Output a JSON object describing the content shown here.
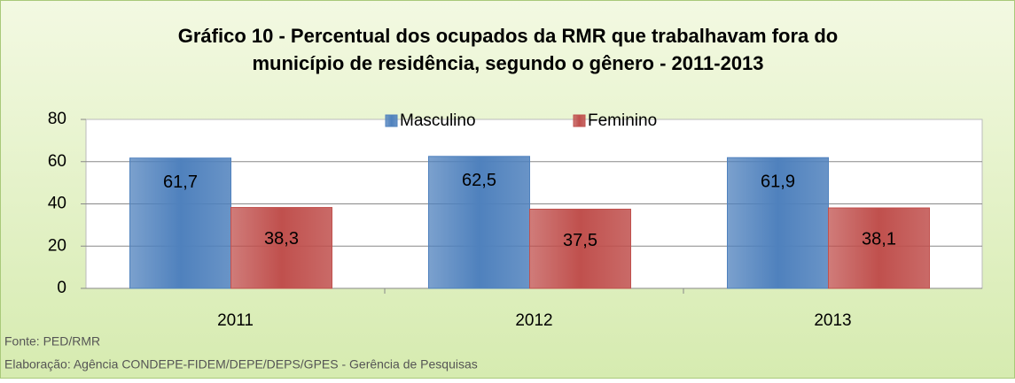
{
  "chart_data": {
    "type": "bar",
    "title": [
      "Gráfico 10 - Percentual dos ocupados da RMR que trabalhavam fora do",
      "município de residência, segundo o gênero - 2011-2013"
    ],
    "categories": [
      "2011",
      "2012",
      "2013"
    ],
    "series": [
      {
        "name": "Masculino",
        "color": "#4f81bd",
        "values": [
          61.7,
          62.5,
          61.9
        ],
        "value_labels": [
          "61,7",
          "62,5",
          "61,9"
        ]
      },
      {
        "name": "Feminino",
        "color": "#c0504d",
        "values": [
          38.3,
          37.5,
          38.1
        ],
        "value_labels": [
          "38,3",
          "37,5",
          "38,1"
        ]
      }
    ],
    "ylim": [
      0,
      80
    ],
    "yticks": [
      0,
      20,
      40,
      60,
      80
    ],
    "grid": true,
    "legend": "top",
    "notes": [
      "Fonte: PED/RMR",
      "Elaboração: Agência CONDEPE-FIDEM/DEPE/DEPS/GPES - Gerência de Pesquisas"
    ]
  }
}
